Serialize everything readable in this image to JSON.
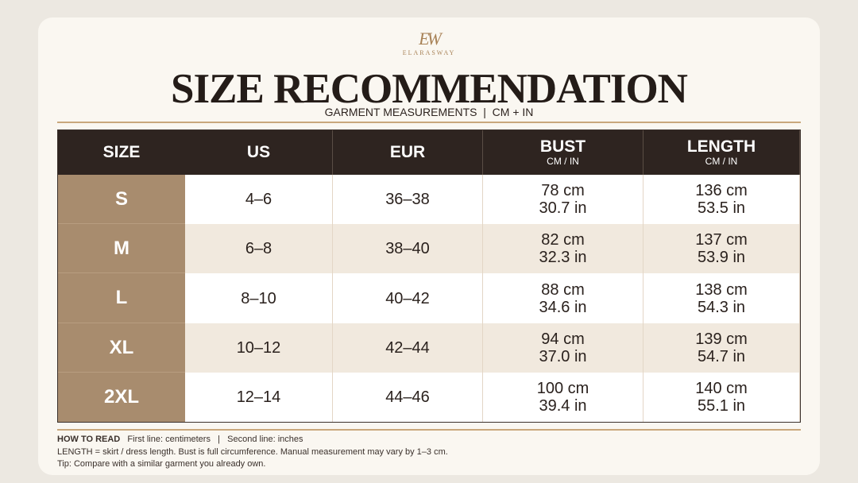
{
  "logo": {
    "monogram": "EW",
    "name": "ELARASWAY"
  },
  "header": {
    "title": "SIZE RECOMMENDATION",
    "subtitle": "GARMENT MEASUREMENTS  |  CM + IN"
  },
  "table": {
    "headers": [
      {
        "label": "SIZE"
      },
      {
        "label": "US"
      },
      {
        "label": "EUR"
      },
      {
        "label": "BUST",
        "sub": "CM / IN"
      },
      {
        "label": "LENGTH",
        "sub": "CM / IN"
      }
    ],
    "rows": [
      [
        "S",
        "4–6",
        "36–38",
        "78 cm",
        "30.7 in",
        "136 cm",
        "53.5 in"
      ],
      [
        "M",
        "6–8",
        "38–40",
        "82 cm",
        "32.3 in",
        "137 cm",
        "53.9 in"
      ],
      [
        "L",
        "8–10",
        "40–42",
        "88 cm",
        "34.6 in",
        "138 cm",
        "54.3 in"
      ],
      [
        "XL",
        "10–12",
        "42–44",
        "94 cm",
        "37.0 in",
        "139 cm",
        "54.7 in"
      ],
      [
        "2XL",
        "12–14",
        "44–46",
        "100 cm",
        "39.4 in",
        "140 cm",
        "55.1 in"
      ]
    ]
  },
  "footer": {
    "heading": "HOW TO READ",
    "key": "First line: centimeters   |   Second line: inches",
    "note": "LENGTH = skirt / dress length. Bust is full circumference. Manual measurement may vary by 1–3 cm.",
    "tip": "Tip: Compare with a similar garment you already own."
  }
}
